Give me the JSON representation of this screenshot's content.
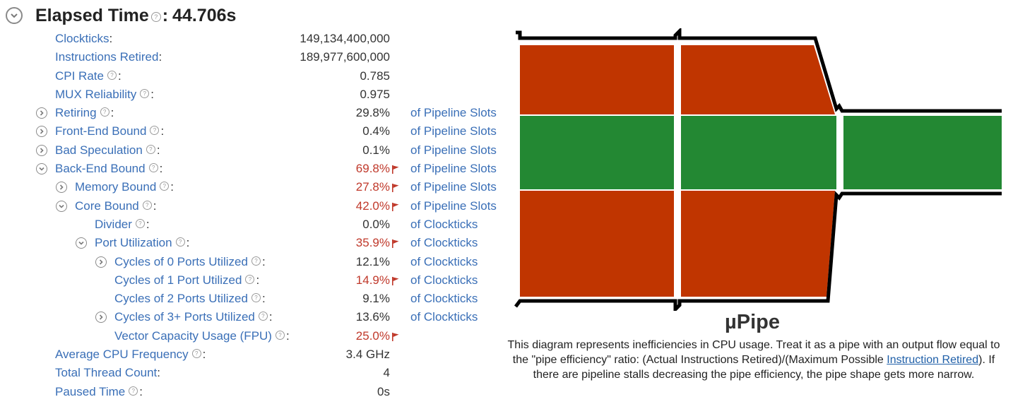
{
  "header": {
    "title": "Elapsed Time",
    "help_glyph": "?",
    "colon": ":",
    "value": "44.706s"
  },
  "metrics": [
    {
      "label": "Clockticks",
      "value": "149,134,400,000",
      "unit": "",
      "help": false,
      "toggle": "none",
      "level": 0,
      "flag": false
    },
    {
      "label": "Instructions Retired",
      "value": "189,977,600,000",
      "unit": "",
      "help": false,
      "toggle": "none",
      "level": 0,
      "flag": false
    },
    {
      "label": "CPI Rate",
      "value": "0.785",
      "unit": "",
      "help": true,
      "toggle": "none",
      "level": 0,
      "flag": false
    },
    {
      "label": "MUX Reliability",
      "value": "0.975",
      "unit": "",
      "help": true,
      "toggle": "none",
      "level": 0,
      "flag": false
    },
    {
      "label": "Retiring",
      "value": "29.8%",
      "unit": "of Pipeline Slots",
      "help": true,
      "toggle": "collapsed",
      "level": 0,
      "flag": false
    },
    {
      "label": "Front-End Bound",
      "value": "0.4%",
      "unit": "of Pipeline Slots",
      "help": true,
      "toggle": "collapsed",
      "level": 0,
      "flag": false
    },
    {
      "label": "Bad Speculation",
      "value": "0.1%",
      "unit": "of Pipeline Slots",
      "help": true,
      "toggle": "collapsed",
      "level": 0,
      "flag": false
    },
    {
      "label": "Back-End Bound",
      "value": "69.8%",
      "unit": "of Pipeline Slots",
      "help": true,
      "toggle": "expanded",
      "level": 0,
      "flag": true
    },
    {
      "label": "Memory Bound",
      "value": "27.8%",
      "unit": "of Pipeline Slots",
      "help": true,
      "toggle": "collapsed",
      "level": 1,
      "flag": true
    },
    {
      "label": "Core Bound",
      "value": "42.0%",
      "unit": "of Pipeline Slots",
      "help": true,
      "toggle": "expanded",
      "level": 1,
      "flag": true
    },
    {
      "label": "Divider",
      "value": "0.0%",
      "unit": "of Clockticks",
      "help": true,
      "toggle": "none",
      "level": 2,
      "flag": false
    },
    {
      "label": "Port Utilization",
      "value": "35.9%",
      "unit": "of Clockticks",
      "help": true,
      "toggle": "expanded",
      "level": 2,
      "flag": true
    },
    {
      "label": "Cycles of 0 Ports Utilized",
      "value": "12.1%",
      "unit": "of Clockticks",
      "help": true,
      "toggle": "collapsed",
      "level": 3,
      "flag": false
    },
    {
      "label": "Cycles of 1 Port Utilized",
      "value": "14.9%",
      "unit": "of Clockticks",
      "help": true,
      "toggle": "none",
      "level": 3,
      "flag": true
    },
    {
      "label": "Cycles of 2 Ports Utilized",
      "value": "9.1%",
      "unit": "of Clockticks",
      "help": true,
      "toggle": "none",
      "level": 3,
      "flag": false
    },
    {
      "label": "Cycles of 3+ Ports Utilized",
      "value": "13.6%",
      "unit": "of Clockticks",
      "help": true,
      "toggle": "collapsed",
      "level": 3,
      "flag": false
    },
    {
      "label": "Vector Capacity Usage (FPU)",
      "value": "25.0%",
      "unit": "",
      "help": true,
      "toggle": "none",
      "level": 3,
      "flag": true
    },
    {
      "label": "Average CPU Frequency",
      "value": "3.4 GHz",
      "unit": "",
      "help": true,
      "toggle": "none",
      "level": 0,
      "flag": false
    },
    {
      "label": "Total Thread Count",
      "value": "4",
      "unit": "",
      "help": false,
      "toggle": "none",
      "level": 0,
      "flag": false
    },
    {
      "label": "Paused Time",
      "value": "0s",
      "unit": "",
      "help": true,
      "toggle": "none",
      "level": 0,
      "flag": false
    }
  ],
  "colors": {
    "link": "#3a6fb7",
    "bad_value": "#c0392b",
    "pipe_red": "#c03500",
    "pipe_green": "#238833",
    "pipe_outline": "#000000"
  },
  "upipe": {
    "title": "µPipe",
    "description_before": "This diagram represents inefficiencies in CPU usage. Treat it as a pipe with an output flow equal to the \"pipe efficiency\" ratio: (Actual Instructions Retired)/(Maximum Possible ",
    "description_link": "Instruction Retired",
    "description_after": "). If there are pipeline stalls decreasing the pipe efficiency, the pipe shape gets more narrow."
  }
}
